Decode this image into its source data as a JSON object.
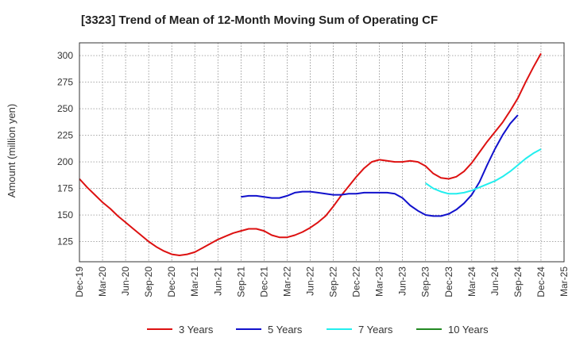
{
  "chart_data": {
    "type": "line",
    "title": "[3323]  Trend of Mean of 12-Month Moving Sum of Operating CF",
    "xlabel": "",
    "ylabel": "Amount (million yen)",
    "ylim": [
      106,
      312
    ],
    "yticks": [
      125,
      150,
      175,
      200,
      225,
      250,
      275,
      300
    ],
    "grid": true,
    "legend_position": "bottom",
    "x_tick_labels": [
      "Dec-19",
      "Mar-20",
      "Jun-20",
      "Sep-20",
      "Dec-20",
      "Mar-21",
      "Jun-21",
      "Sep-21",
      "Dec-21",
      "Mar-22",
      "Jun-22",
      "Sep-22",
      "Dec-22",
      "Mar-23",
      "Jun-23",
      "Sep-23",
      "Dec-23",
      "Mar-24",
      "Jun-24",
      "Sep-24",
      "Dec-24",
      "Mar-25"
    ],
    "series": [
      {
        "name": "3 Years",
        "color": "#dd1111",
        "start_month_index": 0,
        "values": [
          184,
          176,
          169,
          162,
          156,
          149,
          143,
          137,
          131,
          125,
          120,
          116,
          113,
          112,
          113,
          115,
          119,
          123,
          127,
          130,
          133,
          135,
          137,
          137,
          135,
          131,
          129,
          129,
          131,
          134,
          138,
          143,
          149,
          158,
          168,
          177,
          186,
          194,
          200,
          202,
          201,
          200,
          200,
          201,
          200,
          196,
          189,
          185,
          184,
          186,
          191,
          199,
          209,
          219,
          228,
          237,
          248,
          260,
          275,
          289,
          302
        ]
      },
      {
        "name": "5 Years",
        "color": "#1111cc",
        "start_month_index": 21,
        "values": [
          167,
          168,
          168,
          167,
          166,
          166,
          168,
          171,
          172,
          172,
          171,
          170,
          169,
          169,
          170,
          170,
          171,
          171,
          171,
          171,
          170,
          166,
          159,
          154,
          150,
          149,
          149,
          151,
          155,
          161,
          169,
          181,
          197,
          212,
          225,
          236,
          244
        ]
      },
      {
        "name": "7 Years",
        "color": "#22eeee",
        "start_month_index": 45,
        "values": [
          180,
          175,
          172,
          170,
          170,
          171,
          173,
          176,
          179,
          182,
          186,
          191,
          197,
          203,
          208,
          212
        ]
      },
      {
        "name": "10 Years",
        "color": "#228822",
        "start_month_index": 0,
        "values": []
      }
    ]
  }
}
